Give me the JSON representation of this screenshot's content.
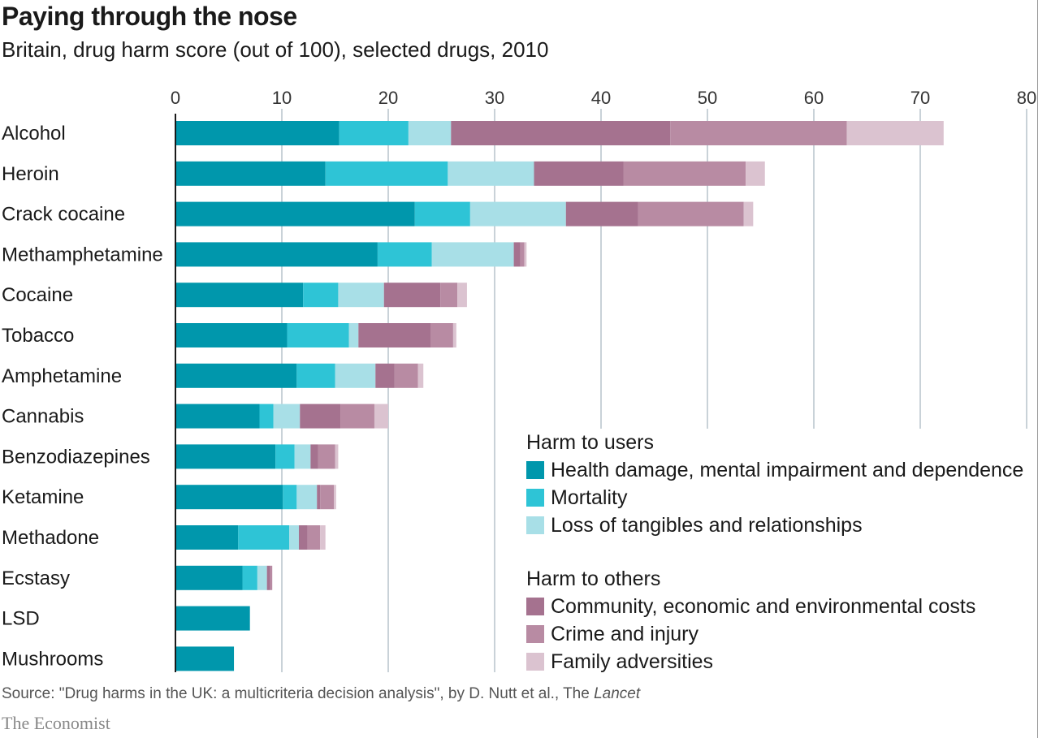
{
  "title": "Paying through the nose",
  "subtitle": "Britain, drug harm score (out of 100), selected drugs, 2010",
  "legend": {
    "users_heading": "Harm to users",
    "others_heading": "Harm to others"
  },
  "source": {
    "prefix": "Source: \"Drug harms in the UK: a multicriteria decision analysis\", by D. Nutt et al., The ",
    "journal": "Lancet"
  },
  "brand": "The Economist",
  "chart_data": {
    "type": "bar",
    "orientation": "horizontal",
    "stacked": true,
    "xlim": [
      0,
      80
    ],
    "ticks": [
      "0",
      "10",
      "20",
      "30",
      "40",
      "50",
      "60",
      "70",
      "80"
    ],
    "tick_values": [
      0,
      10,
      20,
      30,
      40,
      50,
      60,
      70,
      80
    ],
    "grid": "vertical",
    "legend_position": "bottom-right",
    "categories": [
      "Alcohol",
      "Heroin",
      "Crack cocaine",
      "Methamphetamine",
      "Cocaine",
      "Tobacco",
      "Amphetamine",
      "Cannabis",
      "Benzodiazepines",
      "Ketamine",
      "Methadone",
      "Ecstasy",
      "LSD",
      "Mushrooms"
    ],
    "series": [
      {
        "name": "Health damage, mental impairment and dependence",
        "group": "Harm to users",
        "color": "#0097ac",
        "values": [
          15.4,
          14.1,
          22.5,
          19.0,
          12.0,
          10.5,
          11.4,
          7.9,
          9.4,
          10.1,
          5.9,
          6.3,
          7.0,
          5.5
        ]
      },
      {
        "name": "Mortality",
        "group": "Harm to users",
        "color": "#2ec4d6",
        "values": [
          6.5,
          11.5,
          5.2,
          5.1,
          3.3,
          5.8,
          3.6,
          1.3,
          1.8,
          1.3,
          4.8,
          1.4,
          0.0,
          0.0
        ]
      },
      {
        "name": "Loss of tangibles and relationships",
        "group": "Harm to users",
        "color": "#a8dfe7",
        "values": [
          4.0,
          8.1,
          9.0,
          7.7,
          4.3,
          0.9,
          3.8,
          2.5,
          1.5,
          1.9,
          0.9,
          0.9,
          0.0,
          0.0
        ]
      },
      {
        "name": "Community, economic and environmental costs",
        "group": "Harm to others",
        "color": "#a5728f",
        "values": [
          20.6,
          8.4,
          6.8,
          0.6,
          5.3,
          6.8,
          1.8,
          3.8,
          0.7,
          0.3,
          0.8,
          0.3,
          0.0,
          0.0
        ]
      },
      {
        "name": "Crime and injury",
        "group": "Harm to others",
        "color": "#b88ba3",
        "values": [
          16.6,
          11.5,
          9.9,
          0.4,
          1.6,
          2.1,
          2.2,
          3.2,
          1.6,
          1.3,
          1.2,
          0.2,
          0.0,
          0.0
        ]
      },
      {
        "name": "Family adversities",
        "group": "Harm to others",
        "color": "#dbc3d0",
        "values": [
          9.1,
          1.8,
          0.9,
          0.2,
          0.9,
          0.3,
          0.5,
          1.3,
          0.3,
          0.2,
          0.5,
          0.0,
          0.0,
          0.0
        ]
      }
    ]
  }
}
